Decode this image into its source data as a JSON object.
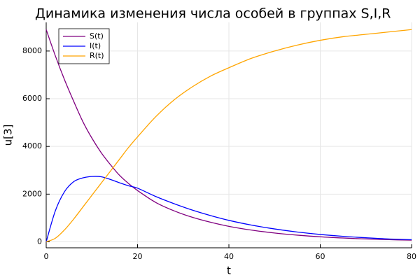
{
  "chart_data": {
    "type": "line",
    "title": "Динамика изменения числа особей в группах S,I,R",
    "xlabel": "t",
    "ylabel": "u[3]",
    "xlim": [
      0,
      80
    ],
    "ylim": [
      -250,
      9200
    ],
    "xticks": [
      0,
      20,
      40,
      60,
      80
    ],
    "yticks": [
      0,
      2000,
      4000,
      6000,
      8000
    ],
    "grid": true,
    "legend_position": "top-left",
    "x": [
      0,
      2,
      4,
      6,
      8,
      10,
      12,
      14,
      16,
      18,
      20,
      24,
      28,
      32,
      36,
      40,
      45,
      50,
      55,
      60,
      65,
      70,
      75,
      80
    ],
    "series": [
      {
        "name": "S(t)",
        "color": "#800080",
        "values": [
          8900,
          7800,
          6800,
          5900,
          5050,
          4350,
          3750,
          3250,
          2800,
          2450,
          2150,
          1650,
          1300,
          1030,
          820,
          650,
          490,
          370,
          280,
          210,
          160,
          120,
          90,
          70
        ]
      },
      {
        "name": "I(t)",
        "color": "#0000ff",
        "values": [
          0,
          1300,
          2100,
          2520,
          2680,
          2740,
          2730,
          2620,
          2480,
          2350,
          2250,
          1900,
          1600,
          1330,
          1100,
          900,
          700,
          540,
          410,
          310,
          230,
          170,
          120,
          90
        ]
      },
      {
        "name": "R(t)",
        "color": "#ffa500",
        "values": [
          0,
          150,
          500,
          950,
          1450,
          1950,
          2450,
          2950,
          3450,
          3950,
          4400,
          5250,
          5950,
          6500,
          6950,
          7300,
          7700,
          8000,
          8250,
          8450,
          8600,
          8700,
          8800,
          8900
        ]
      }
    ]
  }
}
